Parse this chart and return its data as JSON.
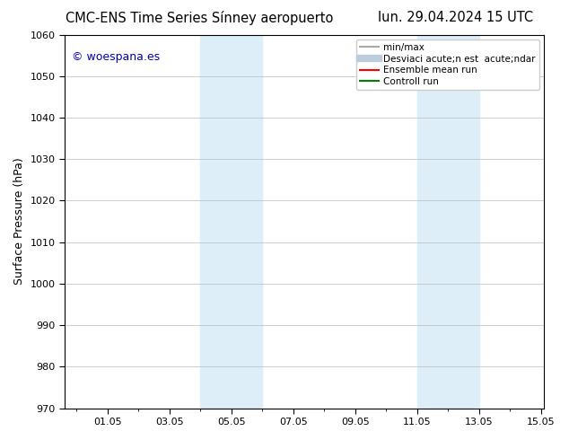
{
  "title_left": "CMC-ENS Time Series Sínney aeropuerto",
  "title_right": "lun. 29.04.2024 15 UTC",
  "ylabel": "Surface Pressure (hPa)",
  "ylim": [
    970,
    1060
  ],
  "yticks": [
    970,
    980,
    990,
    1000,
    1010,
    1020,
    1030,
    1040,
    1050,
    1060
  ],
  "x_tick_labels": [
    "01.05",
    "03.05",
    "05.05",
    "07.05",
    "09.05",
    "11.05",
    "13.05",
    "15.05"
  ],
  "shaded_color": "#ddeef8",
  "watermark_text": "© woespana.es",
  "watermark_color": "#0000bb",
  "legend_labels": [
    "min/max",
    "Desviaci acute;n est  acute;ndar",
    "Ensemble mean run",
    "Controll run"
  ],
  "legend_colors": [
    "#aaaaaa",
    "#bbccdd",
    "red",
    "green"
  ],
  "legend_lws": [
    1.5,
    6,
    1.5,
    1.5
  ],
  "background_color": "#ffffff",
  "grid_color": "#bbbbbb",
  "title_fontsize": 10.5,
  "ylabel_fontsize": 9,
  "tick_fontsize": 8,
  "legend_fontsize": 7.5,
  "watermark_fontsize": 9
}
